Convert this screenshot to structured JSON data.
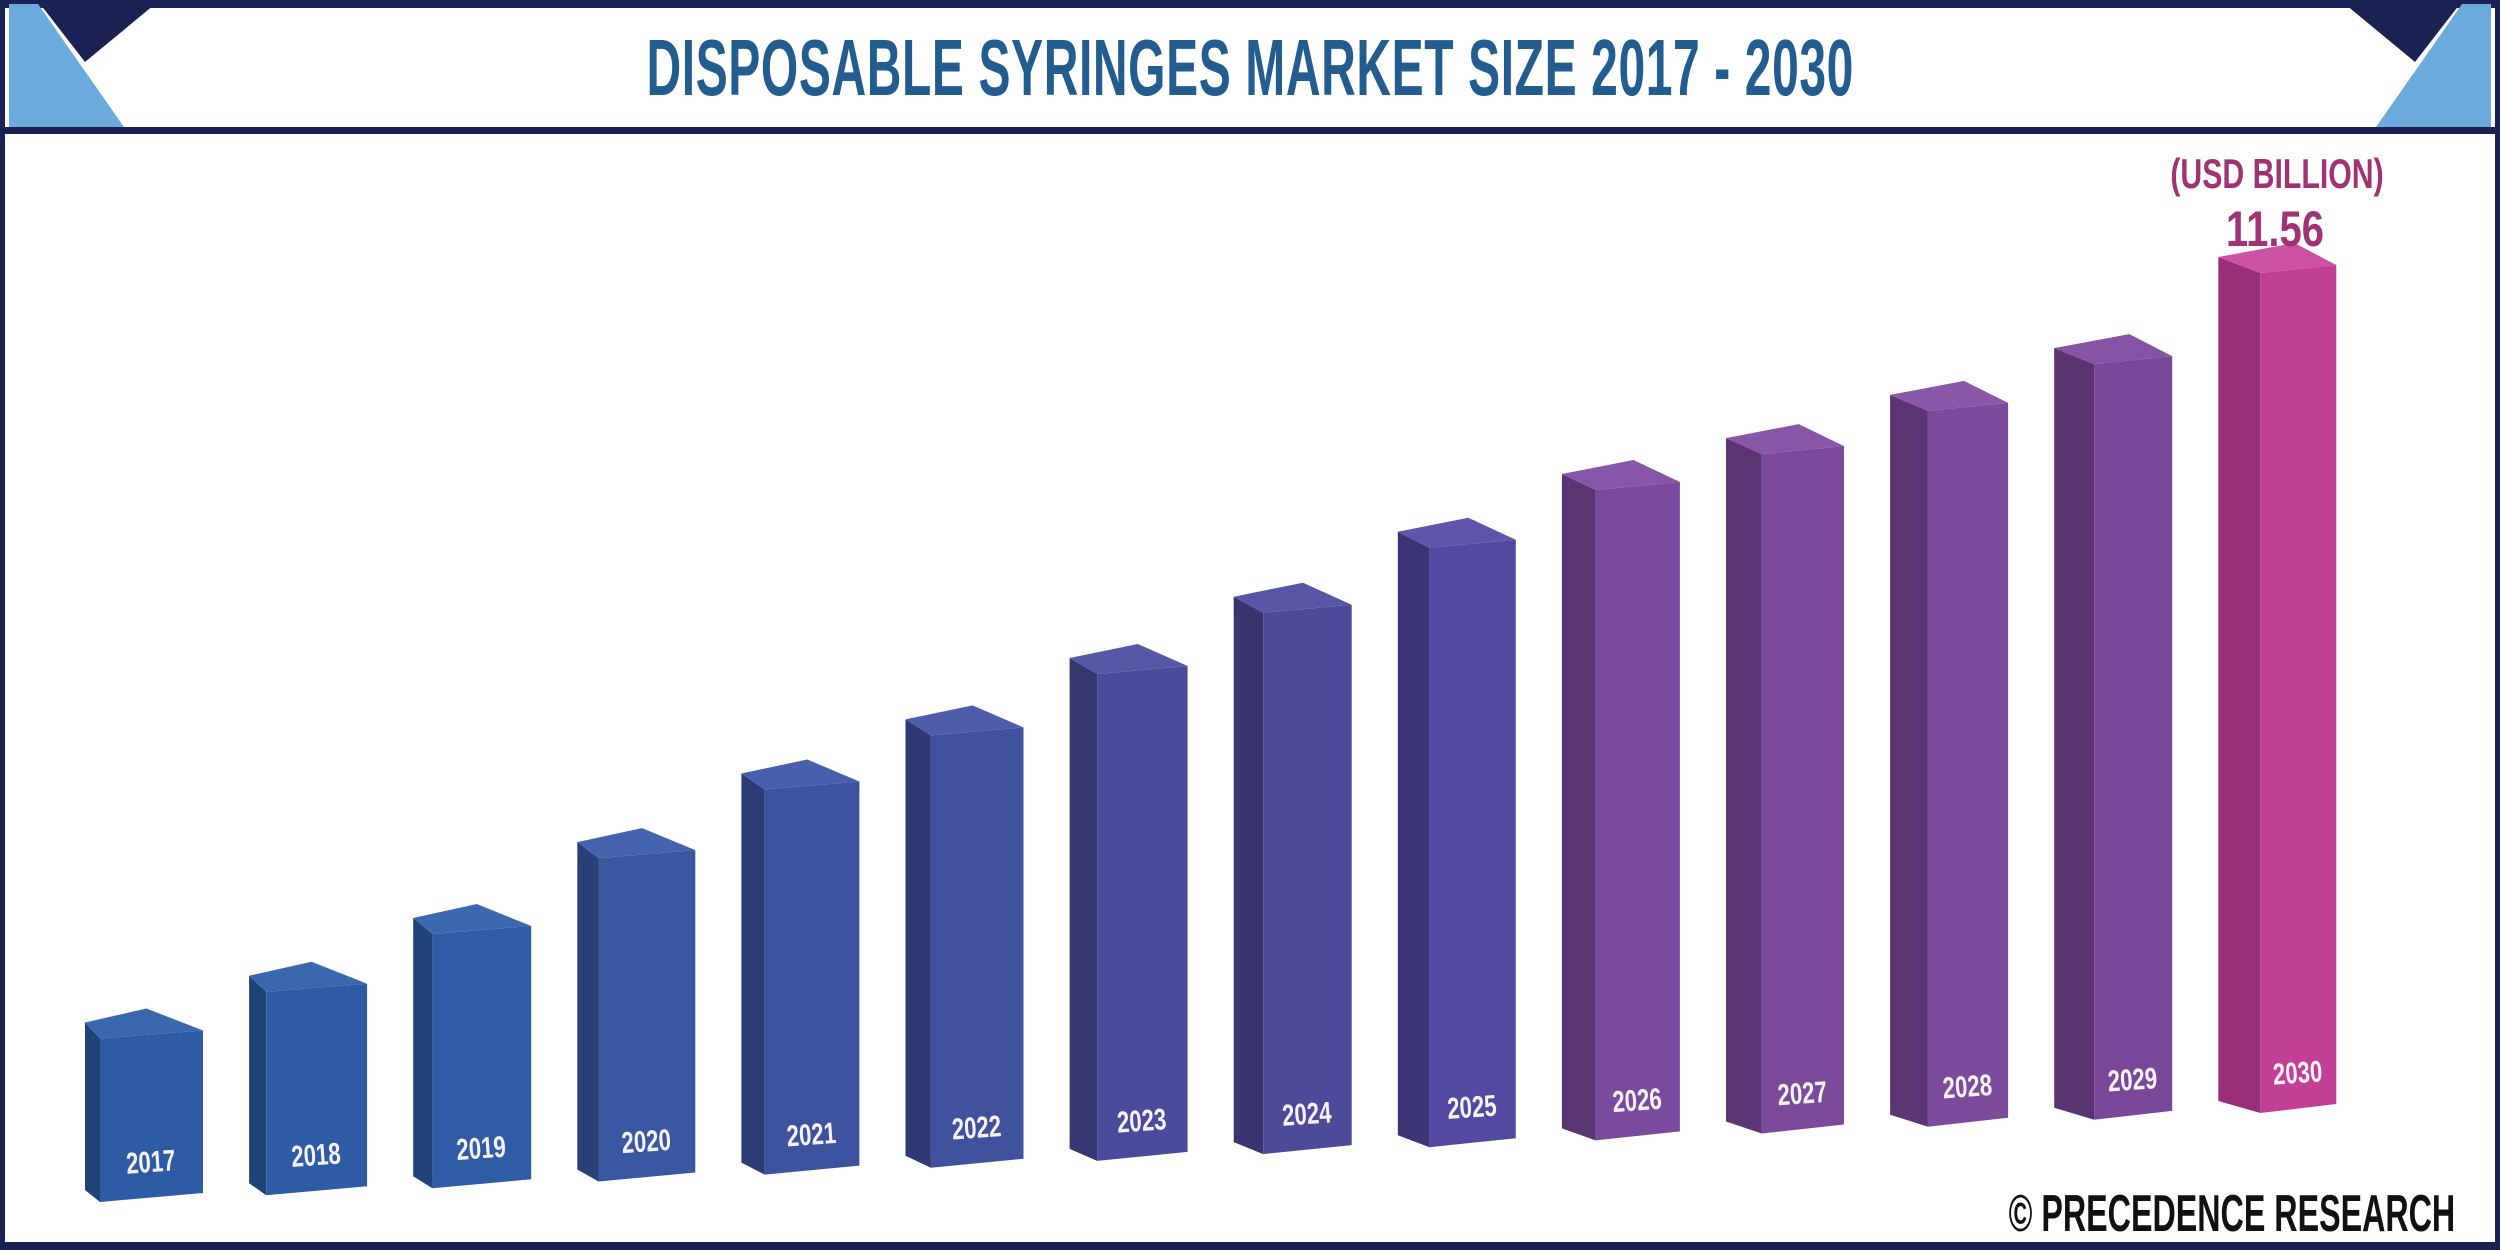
{
  "header": {
    "title": "DISPOSABLE SYRINGES MARKET SIZE 2017 - 2030"
  },
  "chart_data": {
    "type": "bar",
    "style": "3d-column",
    "title": "DISPOSABLE SYRINGES MARKET SIZE 2017 - 2030",
    "unit_label": "(USD BILLION)",
    "top_data_label": "11.56",
    "categories": [
      "2017",
      "2018",
      "2019",
      "2020",
      "2021",
      "2022",
      "2023",
      "2024",
      "2025",
      "2026",
      "2027",
      "2028",
      "2029",
      "2030"
    ],
    "values": [
      2.25,
      2.8,
      3.5,
      4.45,
      5.3,
      5.95,
      6.7,
      7.45,
      8.25,
      8.95,
      9.35,
      9.85,
      10.4,
      11.56
    ],
    "value_labels_shown": [
      "11.56"
    ],
    "xlabel": "",
    "ylabel": "",
    "ylim": [
      0,
      11.56
    ],
    "grid": false,
    "legend": "none",
    "colors": {
      "front": [
        "#2e5ca4",
        "#2e5ca4",
        "#2f5da5",
        "#3a57a2",
        "#3e539f",
        "#40519d",
        "#4a4c9b",
        "#4e4a9a",
        "#514aa0",
        "#7a4b9d",
        "#7b4a9b",
        "#7c4b9c",
        "#7a4899",
        "#c23f98"
      ],
      "side": [
        "#1f4378",
        "#1f4378",
        "#204479",
        "#2a3f77",
        "#2d3c75",
        "#2f3a74",
        "#373772",
        "#3a3571",
        "#3c3575",
        "#5a3574",
        "#5b3473",
        "#5c3574",
        "#5a3371",
        "#992f79"
      ],
      "top": [
        "#3a68af",
        "#3a68af",
        "#3b69b0",
        "#4663ae",
        "#4a5fab",
        "#4c5da9",
        "#5658a7",
        "#5a56a6",
        "#5d56ab",
        "#8657a9",
        "#8756a7",
        "#8857a8",
        "#8654a5",
        "#cc52a6"
      ],
      "year_label_text": "#f5f3f7"
    }
  },
  "footer": {
    "credit": "© PRECEDENCE RESEARCH"
  },
  "theme": {
    "border_navy": "#1b2152",
    "corner_light_blue": "#6caade",
    "title_blue": "#235d90",
    "magenta_label": "#a03473",
    "footer_black": "#111111",
    "background": "#ffffff"
  }
}
